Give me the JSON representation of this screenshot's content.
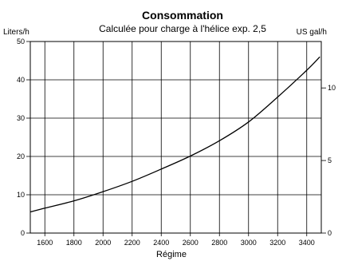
{
  "chart_data": {
    "type": "line",
    "title": "Consommation",
    "subtitle": "Calculée pour charge à l'hélice exp. 2,5",
    "xlabel": "Régime",
    "ylabel_left": "Liters/h",
    "ylabel_right": "US gal/h",
    "xlim": [
      1500,
      3500
    ],
    "ylim_left": [
      0,
      50
    ],
    "ylim_right": [
      0,
      13.2
    ],
    "x_ticks": [
      1600,
      1800,
      2000,
      2200,
      2400,
      2600,
      2800,
      3000,
      3200,
      3400
    ],
    "x_tick_labels": [
      "1600",
      "1800",
      "2000",
      "2200",
      "2400",
      "2600",
      "2800",
      "3000",
      "3200",
      "3400"
    ],
    "y_ticks_left": [
      0,
      10,
      20,
      30,
      40,
      50
    ],
    "y_tick_labels_left": [
      "0",
      "10",
      "20",
      "30",
      "40",
      "50"
    ],
    "y_ticks_right": [
      0,
      5,
      10
    ],
    "y_tick_labels_right": [
      "0",
      "5",
      "10"
    ],
    "grid": true,
    "series": [
      {
        "x": [
          1500,
          1600,
          1800,
          2000,
          2200,
          2400,
          2600,
          2800,
          3000,
          3200,
          3400,
          3490
        ],
        "y": [
          5.5,
          6.5,
          8.4,
          10.8,
          13.5,
          16.7,
          20.1,
          24.1,
          29.0,
          35.5,
          42.5,
          46.0
        ]
      }
    ]
  }
}
